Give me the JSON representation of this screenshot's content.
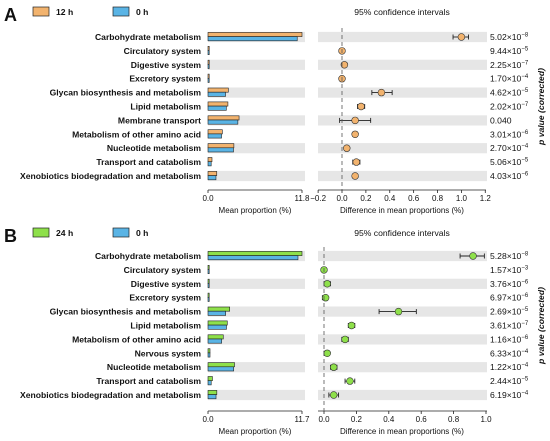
{
  "chart_data": [
    {
      "panel": "A",
      "type": "bar",
      "legend": [
        {
          "name": "12 h",
          "color": "#f2b36e"
        },
        {
          "name": "0 h",
          "color": "#5ab4e5"
        }
      ],
      "ci_title": "95% confidence intervals",
      "categories": [
        "Carbohydrate metabolism",
        "Circulatory system",
        "Digestive system",
        "Excretory system",
        "Glycan biosynthesis and metabolism",
        "Lipid metabolism",
        "Membrane transport",
        "Metabolism of other amino acid",
        "Nucleotide metabolism",
        "Transport and catabolism",
        "Xenobiotics biodegradation and metabolism"
      ],
      "series": [
        {
          "name": "12 h",
          "values": [
            11.8,
            0.05,
            0.07,
            0.06,
            2.55,
            2.5,
            3.9,
            1.8,
            3.25,
            0.5,
            1.1
          ]
        },
        {
          "name": "0 h",
          "values": [
            11.2,
            0.05,
            0.06,
            0.06,
            2.2,
            2.3,
            3.75,
            1.7,
            3.2,
            0.4,
            1.0
          ]
        }
      ],
      "bar_xticks": [
        "0.0",
        "11.8"
      ],
      "bar_xmax": 11.8,
      "bar_xlabel": "Mean proportion (%)",
      "diff": [
        1.0,
        0.0,
        0.02,
        0.0,
        0.33,
        0.16,
        0.11,
        0.11,
        0.04,
        0.12,
        0.11
      ],
      "diff_low": [
        0.93,
        -0.01,
        0.0,
        -0.01,
        0.25,
        0.13,
        -0.02,
        0.09,
        0.02,
        0.09,
        0.09
      ],
      "diff_high": [
        1.06,
        0.01,
        0.04,
        0.01,
        0.42,
        0.19,
        0.24,
        0.13,
        0.06,
        0.15,
        0.13
      ],
      "diff_color": "#f2b36e",
      "diff_xlim": [
        -0.2,
        1.2
      ],
      "diff_xticks": [
        "−0.2",
        "0.0",
        "0.2",
        "0.4",
        "0.6",
        "0.8",
        "1.0",
        "1.2"
      ],
      "diff_xlabel": "Difference in mean proportions (%)",
      "p_values": [
        {
          "m": "5.02×10",
          "e": "−8"
        },
        {
          "m": "9.44×10",
          "e": "−5"
        },
        {
          "m": "2.25×10",
          "e": "−7"
        },
        {
          "m": "1.70×10",
          "e": "−4"
        },
        {
          "m": "4.62×10",
          "e": "−5"
        },
        {
          "m": "2.02×10",
          "e": "−7"
        },
        {
          "m": "0.040",
          "e": ""
        },
        {
          "m": "3.01×10",
          "e": "−6"
        },
        {
          "m": "2.70×10",
          "e": "−4"
        },
        {
          "m": "5.06×10",
          "e": "−5"
        },
        {
          "m": "4.03×10",
          "e": "−6"
        }
      ],
      "p_label": "p value (corrected)"
    },
    {
      "panel": "B",
      "type": "bar",
      "legend": [
        {
          "name": "24 h",
          "color": "#8ee04a"
        },
        {
          "name": "0 h",
          "color": "#5ab4e5"
        }
      ],
      "ci_title": "95% confidence intervals",
      "categories": [
        "Carbohydrate metabolism",
        "Circulatory system",
        "Digestive system",
        "Excretory system",
        "Glycan biosynthesis and metabolism",
        "Lipid metabolism",
        "Metabolism of other amino acid",
        "Nervous system",
        "Nucleotide metabolism",
        "Transport and catabolism",
        "Xenobiotics biodegradation and metabolism"
      ],
      "series": [
        {
          "name": "24 h",
          "values": [
            11.7,
            0.05,
            0.08,
            0.07,
            2.7,
            2.4,
            1.9,
            0.25,
            3.3,
            0.55,
            1.1
          ]
        },
        {
          "name": "0 h",
          "values": [
            11.2,
            0.05,
            0.06,
            0.06,
            2.2,
            2.3,
            1.7,
            0.25,
            3.2,
            0.4,
            1.0
          ]
        }
      ],
      "bar_xticks": [
        "0.0",
        "11.7"
      ],
      "bar_xmax": 11.7,
      "bar_xlabel": "Mean proportion (%)",
      "diff": [
        0.92,
        0.0,
        0.02,
        0.01,
        0.46,
        0.17,
        0.13,
        0.02,
        0.06,
        0.16,
        0.06
      ],
      "diff_low": [
        0.84,
        -0.01,
        0.0,
        -0.01,
        0.34,
        0.15,
        0.11,
        0.0,
        0.04,
        0.13,
        0.03
      ],
      "diff_high": [
        0.99,
        0.01,
        0.04,
        0.02,
        0.57,
        0.19,
        0.15,
        0.03,
        0.08,
        0.19,
        0.09
      ],
      "diff_color": "#8ee04a",
      "diff_xlim": [
        -0.05,
        1.0
      ],
      "diff_xticks": [
        "0.0",
        "0.2",
        "0.4",
        "0.6",
        "0.8",
        "1.0"
      ],
      "diff_xlabel": "Difference in mean proportions (%)",
      "p_values": [
        {
          "m": "5.28×10",
          "e": "−8"
        },
        {
          "m": "1.57×10",
          "e": "−3"
        },
        {
          "m": "3.76×10",
          "e": "−6"
        },
        {
          "m": "6.97×10",
          "e": "−6"
        },
        {
          "m": "2.69×10",
          "e": "−5"
        },
        {
          "m": "3.61×10",
          "e": "−7"
        },
        {
          "m": "1.16×10",
          "e": "−6"
        },
        {
          "m": "6.33×10",
          "e": "−4"
        },
        {
          "m": "1.22×10",
          "e": "−4"
        },
        {
          "m": "2.44×10",
          "e": "−5"
        },
        {
          "m": "6.19×10",
          "e": "−4"
        }
      ],
      "p_label": "p value (corrected)"
    }
  ]
}
